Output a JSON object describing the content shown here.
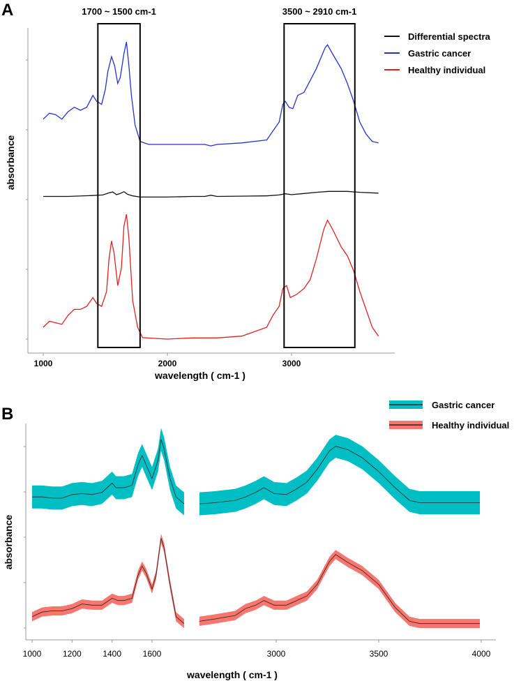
{
  "chart_data": [
    {
      "panel": "A",
      "type": "line",
      "xlabel": "wavelength ( cm-1 )",
      "ylabel": "absorbance",
      "xlim": [
        920,
        3820
      ],
      "ylim": [
        0,
        1
      ],
      "x_ticks": [
        1000,
        2000,
        3000
      ],
      "regions": [
        {
          "label": "1700 ~ 1500 cm-1",
          "x_from": 1440,
          "x_to": 1780
        },
        {
          "label": "3500 ~ 2910 cm-1",
          "x_from": 2940,
          "x_to": 3510
        }
      ],
      "legend": [
        "Differential spectra",
        "Gastric cancer",
        "Healthy individual"
      ],
      "legend_position": "top-right",
      "series": [
        {
          "name": "Gastric cancer",
          "color": "#2233cc",
          "points": [
            [
              1000,
              0.74
            ],
            [
              1050,
              0.76
            ],
            [
              1100,
              0.755
            ],
            [
              1150,
              0.74
            ],
            [
              1200,
              0.765
            ],
            [
              1250,
              0.78
            ],
            [
              1300,
              0.77
            ],
            [
              1350,
              0.78
            ],
            [
              1400,
              0.82
            ],
            [
              1430,
              0.8
            ],
            [
              1470,
              0.79
            ],
            [
              1500,
              0.84
            ],
            [
              1520,
              0.9
            ],
            [
              1550,
              0.95
            ],
            [
              1575,
              0.92
            ],
            [
              1600,
              0.86
            ],
            [
              1620,
              0.88
            ],
            [
              1650,
              0.96
            ],
            [
              1670,
              1.0
            ],
            [
              1690,
              0.92
            ],
            [
              1710,
              0.82
            ],
            [
              1740,
              0.72
            ],
            [
              1780,
              0.665
            ],
            [
              1850,
              0.655
            ],
            [
              2000,
              0.655
            ],
            [
              2200,
              0.655
            ],
            [
              2300,
              0.655
            ],
            [
              2350,
              0.65
            ],
            [
              2400,
              0.655
            ],
            [
              2600,
              0.66
            ],
            [
              2800,
              0.67
            ],
            [
              2850,
              0.7
            ],
            [
              2900,
              0.73
            ],
            [
              2930,
              0.79
            ],
            [
              2950,
              0.8
            ],
            [
              2980,
              0.78
            ],
            [
              3010,
              0.775
            ],
            [
              3050,
              0.82
            ],
            [
              3100,
              0.83
            ],
            [
              3150,
              0.87
            ],
            [
              3200,
              0.91
            ],
            [
              3270,
              0.98
            ],
            [
              3290,
              0.99
            ],
            [
              3330,
              0.96
            ],
            [
              3400,
              0.91
            ],
            [
              3450,
              0.86
            ],
            [
              3500,
              0.8
            ],
            [
              3550,
              0.73
            ],
            [
              3600,
              0.69
            ],
            [
              3650,
              0.665
            ],
            [
              3700,
              0.66
            ]
          ]
        },
        {
          "name": "Differential spectra",
          "color": "#111111",
          "points": [
            [
              1000,
              0.48
            ],
            [
              1200,
              0.48
            ],
            [
              1400,
              0.483
            ],
            [
              1480,
              0.485
            ],
            [
              1530,
              0.492
            ],
            [
              1560,
              0.495
            ],
            [
              1590,
              0.486
            ],
            [
              1620,
              0.49
            ],
            [
              1650,
              0.496
            ],
            [
              1680,
              0.487
            ],
            [
              1720,
              0.482
            ],
            [
              1780,
              0.478
            ],
            [
              2000,
              0.478
            ],
            [
              2200,
              0.48
            ],
            [
              2300,
              0.48
            ],
            [
              2350,
              0.484
            ],
            [
              2400,
              0.48
            ],
            [
              2600,
              0.481
            ],
            [
              2800,
              0.482
            ],
            [
              2900,
              0.485
            ],
            [
              2950,
              0.489
            ],
            [
              3000,
              0.486
            ],
            [
              3100,
              0.49
            ],
            [
              3200,
              0.494
            ],
            [
              3300,
              0.497
            ],
            [
              3450,
              0.497
            ],
            [
              3550,
              0.494
            ],
            [
              3700,
              0.491
            ]
          ]
        },
        {
          "name": "Healthy individual",
          "color": "#dd2222",
          "points": [
            [
              1000,
              0.04
            ],
            [
              1050,
              0.06
            ],
            [
              1100,
              0.055
            ],
            [
              1150,
              0.05
            ],
            [
              1200,
              0.08
            ],
            [
              1250,
              0.1
            ],
            [
              1300,
              0.1
            ],
            [
              1350,
              0.11
            ],
            [
              1400,
              0.14
            ],
            [
              1430,
              0.12
            ],
            [
              1470,
              0.11
            ],
            [
              1510,
              0.16
            ],
            [
              1530,
              0.27
            ],
            [
              1550,
              0.33
            ],
            [
              1570,
              0.29
            ],
            [
              1600,
              0.18
            ],
            [
              1630,
              0.24
            ],
            [
              1650,
              0.38
            ],
            [
              1670,
              0.42
            ],
            [
              1690,
              0.34
            ],
            [
              1720,
              0.13
            ],
            [
              1760,
              0.04
            ],
            [
              1800,
              0.005
            ],
            [
              2000,
              0.0
            ],
            [
              2200,
              0.004
            ],
            [
              2400,
              0.004
            ],
            [
              2600,
              0.01
            ],
            [
              2800,
              0.04
            ],
            [
              2850,
              0.08
            ],
            [
              2900,
              0.11
            ],
            [
              2930,
              0.17
            ],
            [
              2960,
              0.18
            ],
            [
              2990,
              0.14
            ],
            [
              3040,
              0.15
            ],
            [
              3100,
              0.17
            ],
            [
              3150,
              0.2
            ],
            [
              3200,
              0.27
            ],
            [
              3260,
              0.37
            ],
            [
              3290,
              0.4
            ],
            [
              3330,
              0.37
            ],
            [
              3400,
              0.31
            ],
            [
              3450,
              0.28
            ],
            [
              3500,
              0.23
            ],
            [
              3550,
              0.16
            ],
            [
              3600,
              0.1
            ],
            [
              3650,
              0.04
            ],
            [
              3700,
              0.01
            ]
          ]
        }
      ]
    },
    {
      "panel": "B",
      "type": "area",
      "xlabel": "wavelength ( cm-1 )",
      "ylabel": "absorbance",
      "x_ticks_left": [
        1000,
        1200,
        1400,
        1600
      ],
      "x_ticks_right": [
        3000,
        3500,
        4000
      ],
      "xlim_left": [
        980,
        1760
      ],
      "xlim_right": [
        2560,
        4000
      ],
      "ylim": [
        0,
        1
      ],
      "legend": [
        "Gastric cancer",
        "Healthy individual"
      ],
      "legend_position": "top-right",
      "series": [
        {
          "name": "Gastric cancer",
          "color": "#00bfc4",
          "line_color": "#222222",
          "band_halfwidth": 0.05,
          "left": [
            [
              980,
              0.56
            ],
            [
              1050,
              0.56
            ],
            [
              1100,
              0.555
            ],
            [
              1150,
              0.555
            ],
            [
              1200,
              0.57
            ],
            [
              1250,
              0.575
            ],
            [
              1300,
              0.57
            ],
            [
              1350,
              0.58
            ],
            [
              1400,
              0.62
            ],
            [
              1420,
              0.6
            ],
            [
              1460,
              0.6
            ],
            [
              1500,
              0.61
            ],
            [
              1530,
              0.7
            ],
            [
              1550,
              0.74
            ],
            [
              1570,
              0.7
            ],
            [
              1600,
              0.64
            ],
            [
              1630,
              0.72
            ],
            [
              1645,
              0.81
            ],
            [
              1660,
              0.77
            ],
            [
              1690,
              0.64
            ],
            [
              1720,
              0.56
            ],
            [
              1760,
              0.53
            ]
          ],
          "right": [
            [
              2560,
              0.53
            ],
            [
              2700,
              0.535
            ],
            [
              2800,
              0.545
            ],
            [
              2850,
              0.56
            ],
            [
              2900,
              0.58
            ],
            [
              2940,
              0.6
            ],
            [
              2990,
              0.575
            ],
            [
              3050,
              0.57
            ],
            [
              3100,
              0.595
            ],
            [
              3150,
              0.625
            ],
            [
              3200,
              0.68
            ],
            [
              3260,
              0.76
            ],
            [
              3290,
              0.78
            ],
            [
              3350,
              0.765
            ],
            [
              3420,
              0.73
            ],
            [
              3500,
              0.67
            ],
            [
              3580,
              0.6
            ],
            [
              3650,
              0.545
            ],
            [
              3700,
              0.535
            ],
            [
              3800,
              0.535
            ],
            [
              4000,
              0.535
            ]
          ]
        },
        {
          "name": "Healthy individual",
          "color": "#f8766d",
          "line_color": "#222222",
          "band_halfwidth": 0.02,
          "left": [
            [
              980,
              0.04
            ],
            [
              1050,
              0.06
            ],
            [
              1100,
              0.065
            ],
            [
              1150,
              0.065
            ],
            [
              1200,
              0.075
            ],
            [
              1250,
              0.095
            ],
            [
              1300,
              0.09
            ],
            [
              1350,
              0.09
            ],
            [
              1400,
              0.12
            ],
            [
              1430,
              0.11
            ],
            [
              1460,
              0.11
            ],
            [
              1500,
              0.12
            ],
            [
              1530,
              0.22
            ],
            [
              1550,
              0.26
            ],
            [
              1570,
              0.23
            ],
            [
              1600,
              0.16
            ],
            [
              1620,
              0.22
            ],
            [
              1645,
              0.38
            ],
            [
              1660,
              0.34
            ],
            [
              1690,
              0.18
            ],
            [
              1720,
              0.04
            ],
            [
              1760,
              0.01
            ]
          ],
          "right": [
            [
              2560,
              0.02
            ],
            [
              2700,
              0.03
            ],
            [
              2800,
              0.045
            ],
            [
              2850,
              0.075
            ],
            [
              2900,
              0.09
            ],
            [
              2940,
              0.11
            ],
            [
              2990,
              0.09
            ],
            [
              3050,
              0.09
            ],
            [
              3100,
              0.11
            ],
            [
              3150,
              0.13
            ],
            [
              3200,
              0.18
            ],
            [
              3260,
              0.28
            ],
            [
              3290,
              0.31
            ],
            [
              3350,
              0.275
            ],
            [
              3420,
              0.24
            ],
            [
              3500,
              0.18
            ],
            [
              3580,
              0.08
            ],
            [
              3650,
              0.02
            ],
            [
              3700,
              0.01
            ],
            [
              3800,
              0.01
            ],
            [
              4000,
              0.01
            ]
          ]
        }
      ]
    }
  ],
  "panel_labels": {
    "a": "A",
    "b": "B"
  }
}
